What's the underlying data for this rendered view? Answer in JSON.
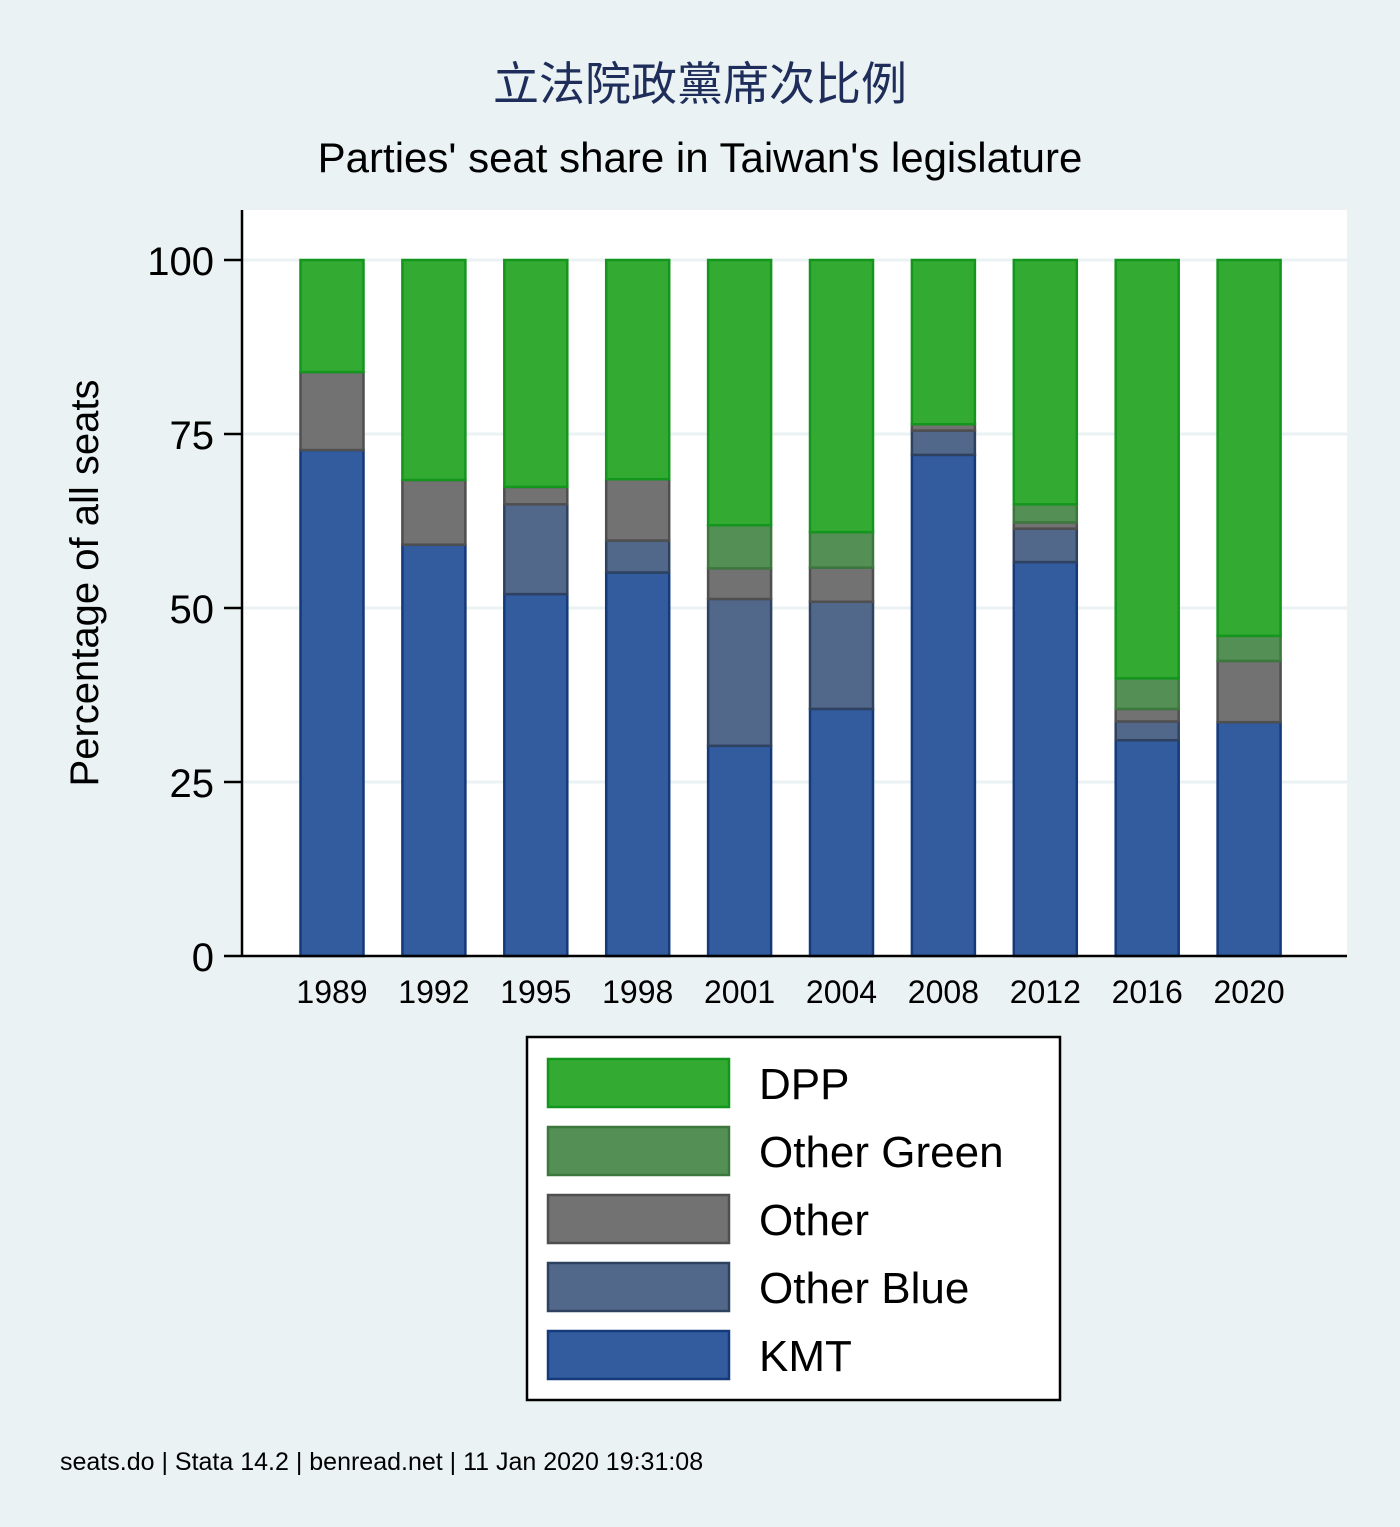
{
  "chart_data": {
    "type": "bar",
    "stacked": true,
    "title": "立法院政黨席次比例",
    "subtitle": "Parties' seat share in Taiwan's legislature",
    "xlabel": "",
    "ylabel": "Percentage of all seats",
    "ylim": [
      0,
      100
    ],
    "yticks": [
      0,
      25,
      50,
      75,
      100
    ],
    "grid": true,
    "legend_position": "bottom",
    "categories": [
      "1989",
      "1992",
      "1995",
      "1998",
      "2001",
      "2004",
      "2008",
      "2012",
      "2016",
      "2020"
    ],
    "series": [
      {
        "name": "KMT",
        "color": "#335c9f",
        "stroke": "#143a7c",
        "values": [
          72.7,
          59.1,
          52.0,
          55.1,
          30.2,
          35.5,
          72.0,
          56.6,
          31.0,
          33.6
        ]
      },
      {
        "name": "Other Blue",
        "color": "#52688a",
        "stroke": "#2e4260",
        "values": [
          0,
          0,
          12.9,
          4.6,
          21.1,
          15.4,
          3.5,
          4.8,
          2.7,
          0
        ]
      },
      {
        "name": "Other",
        "color": "#727272",
        "stroke": "#4f4f4f",
        "values": [
          11.2,
          9.3,
          2.5,
          8.8,
          4.4,
          4.9,
          0.9,
          0.9,
          1.8,
          8.8
        ]
      },
      {
        "name": "Other Green",
        "color": "#548f55",
        "stroke": "#3c783d",
        "values": [
          0,
          0,
          0,
          0,
          6.2,
          5.1,
          0,
          2.6,
          4.4,
          3.6
        ]
      },
      {
        "name": "DPP",
        "color": "#33ab33",
        "stroke": "#14951e",
        "values": [
          16.1,
          31.6,
          32.6,
          31.5,
          38.1,
          39.1,
          23.6,
          35.1,
          60.1,
          54.0
        ]
      }
    ],
    "legend_order": [
      "DPP",
      "Other Green",
      "Other",
      "Other Blue",
      "KMT"
    ]
  },
  "footer": "seats.do | Stata 14.2 | benread.net | 11 Jan 2020 19:31:08"
}
